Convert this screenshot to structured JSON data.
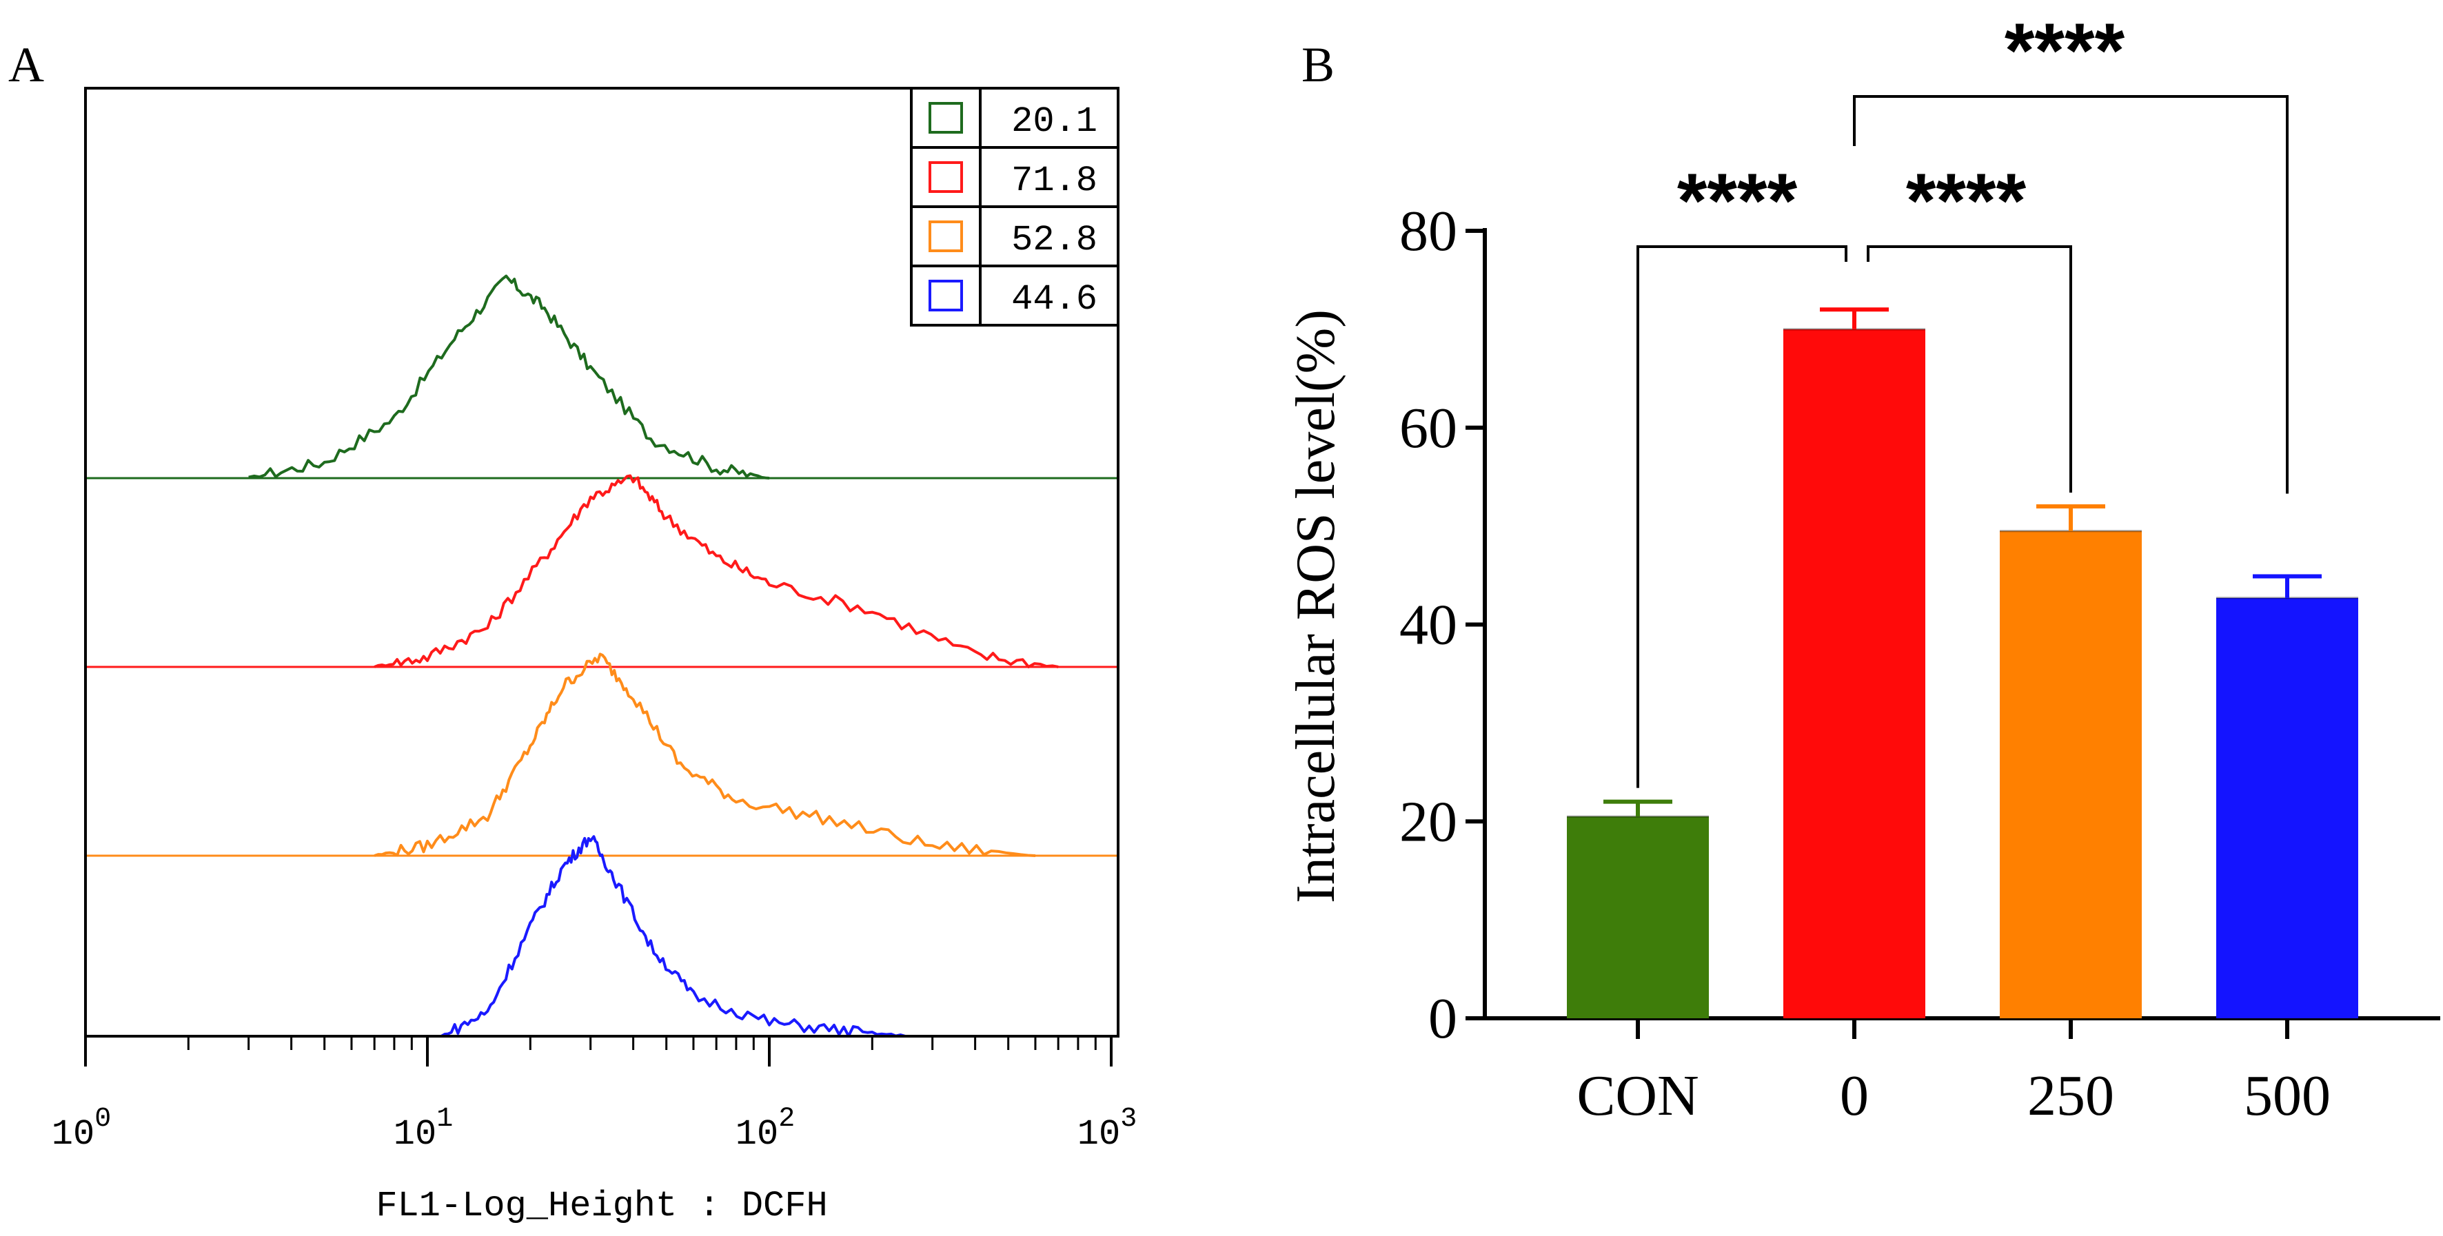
{
  "panels": {
    "a_label": "A",
    "b_label": "B"
  },
  "chart_data": [
    {
      "type": "line",
      "panel": "A",
      "xlabel": "FL1-Log_Height : DCFH",
      "ylabel": "",
      "x_scale": "log",
      "xlim": [
        1,
        1000
      ],
      "x_ticks": [
        {
          "base": "10",
          "exp": "0"
        },
        {
          "base": "10",
          "exp": "1"
        },
        {
          "base": "10",
          "exp": "2"
        },
        {
          "base": "10",
          "exp": "3"
        }
      ],
      "legend": {
        "placement": "top-right",
        "entries": [
          {
            "value": "20.1",
            "color": "#1e6b1e"
          },
          {
            "value": "71.8",
            "color": "#ff1a1a"
          },
          {
            "value": "52.8",
            "color": "#ff8c1a"
          },
          {
            "value": "44.6",
            "color": "#1a1aff"
          }
        ]
      },
      "series": [
        {
          "color": "#1e6b1e",
          "x": [
            3,
            5,
            8,
            12,
            17,
            22,
            30,
            45,
            70,
            100
          ],
          "y": [
            0.0,
            0.08,
            0.3,
            0.7,
            1.0,
            0.85,
            0.55,
            0.2,
            0.05,
            0.0
          ]
        },
        {
          "color": "#ff1a1a",
          "x": [
            7,
            10,
            15,
            22,
            30,
            40,
            50,
            70,
            100,
            200,
            400,
            700
          ],
          "y": [
            0.0,
            0.05,
            0.2,
            0.55,
            0.85,
            0.95,
            0.75,
            0.55,
            0.42,
            0.28,
            0.06,
            0.0
          ]
        },
        {
          "color": "#ff8c1a",
          "x": [
            7,
            10,
            15,
            20,
            25,
            32,
            40,
            55,
            80,
            150,
            300,
            600
          ],
          "y": [
            0.0,
            0.05,
            0.2,
            0.55,
            0.85,
            1.0,
            0.8,
            0.45,
            0.28,
            0.18,
            0.05,
            0.0
          ]
        },
        {
          "color": "#1a1aff",
          "x": [
            11,
            15,
            20,
            25,
            30,
            35,
            45,
            60,
            100,
            160,
            250
          ],
          "y": [
            0.0,
            0.12,
            0.55,
            0.85,
            1.0,
            0.8,
            0.45,
            0.2,
            0.07,
            0.03,
            0.0
          ]
        }
      ]
    },
    {
      "type": "bar",
      "panel": "B",
      "categories": [
        "CON",
        "0",
        "250",
        "500"
      ],
      "values": [
        20.5,
        70.0,
        49.5,
        42.7
      ],
      "errors": [
        1.5,
        2.0,
        2.5,
        2.2
      ],
      "colors": [
        "#3e7d0a",
        "#ff0a0a",
        "#ff8000",
        "#1414ff"
      ],
      "xlabel": "",
      "ylabel": "Intracellular ROS level(%)",
      "ylim": [
        0,
        80
      ],
      "y_ticks": [
        "0",
        "20",
        "40",
        "60",
        "80"
      ],
      "grid": false,
      "significance": [
        {
          "from": "CON",
          "to": "0",
          "label": "****"
        },
        {
          "from": "0",
          "to": "250",
          "label": "****"
        },
        {
          "from": "0",
          "to": "500",
          "label": "****"
        }
      ]
    }
  ]
}
